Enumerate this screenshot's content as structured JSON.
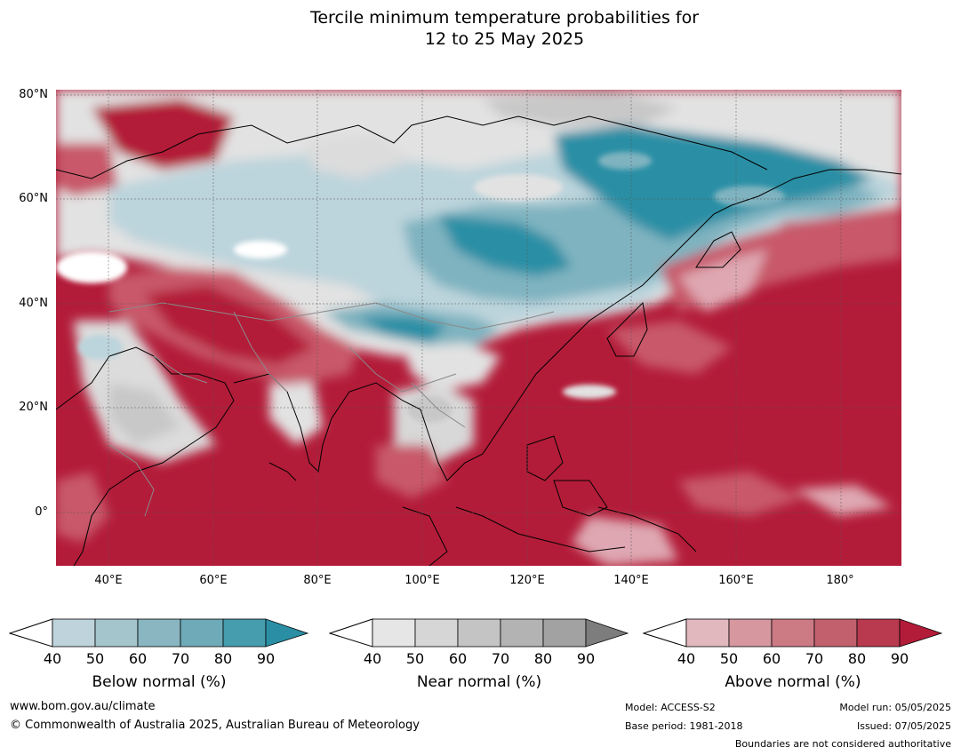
{
  "title_line1": "Tercile minimum temperature probabilities for",
  "title_line2": "12 to 25 May 2025",
  "map": {
    "lat_labels": [
      "80°N",
      "60°N",
      "40°N",
      "20°N",
      "0°"
    ],
    "lon_labels": [
      "40°E",
      "60°E",
      "80°E",
      "100°E",
      "120°E",
      "140°E",
      "160°E",
      "180°"
    ],
    "lon_range": [
      30,
      191
    ],
    "lat_range": [
      -10,
      81
    ],
    "colors": {
      "above_strong": "#b31c39",
      "above_mid": "#c8596a",
      "above_light": "#dea7b1",
      "near": "#e0e0e0",
      "near_dark": "#c8c8c8",
      "below_light": "#bcd4dc",
      "below_mid": "#7fb3c0",
      "below_strong": "#2a8fa5"
    }
  },
  "legends": [
    {
      "title": "Below normal (%)",
      "ticks": [
        "40",
        "50",
        "60",
        "70",
        "80",
        "90"
      ],
      "colors": [
        "#bed3db",
        "#a5c5cd",
        "#89b6c0",
        "#6eaab7",
        "#459dae",
        "#2a8fa5"
      ]
    },
    {
      "title": "Near normal (%)",
      "ticks": [
        "40",
        "50",
        "60",
        "70",
        "80",
        "90"
      ],
      "colors": [
        "#e6e6e6",
        "#d6d6d6",
        "#c4c4c4",
        "#b3b3b3",
        "#a2a2a2",
        "#7d7d7d"
      ]
    },
    {
      "title": "Above normal (%)",
      "ticks": [
        "40",
        "50",
        "60",
        "70",
        "80",
        "90"
      ],
      "colors": [
        "#e2b8bf",
        "#d6979f",
        "#cc7a84",
        "#c2606d",
        "#b93a4e",
        "#b31c39"
      ]
    }
  ],
  "footer": {
    "url": "www.bom.gov.au/climate",
    "copyright": "© Commonwealth of Australia 2025, Australian Bureau of Meteorology",
    "model": "Model: ACCESS-S2",
    "base_period": "Base period: 1981-2018",
    "model_run": "Model run: 05/05/2025",
    "issued": "Issued: 07/05/2025",
    "disclaimer": "Boundaries are not considered authoritative"
  }
}
